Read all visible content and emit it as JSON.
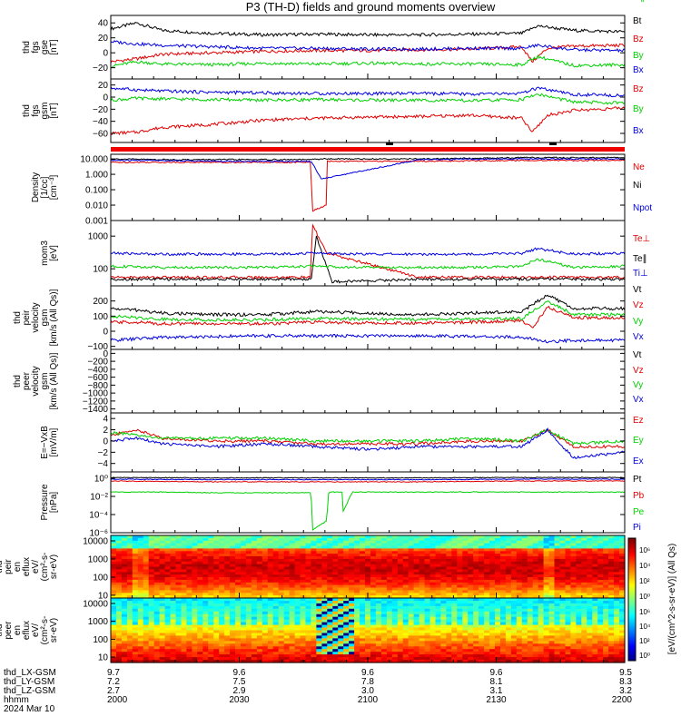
{
  "title": "P3 (TH-D) fields and ground moments overview",
  "colors": {
    "black": "#000000",
    "red": "#e00000",
    "green": "#00d000",
    "blue": "#0000e0"
  },
  "chart_data": [
    {
      "type": "line",
      "panel": "fgs_gse",
      "ylabel": [
        "thd",
        "fgs",
        "gse",
        "[nT]"
      ],
      "ylim": [
        -35,
        50
      ],
      "yticks": [
        "40",
        "20",
        "0",
        "−20"
      ],
      "ytick_values": [
        40,
        20,
        0,
        -20
      ],
      "series": [
        {
          "name": "Bt",
          "color": "#000000",
          "x": [
            0,
            0.05,
            0.1,
            0.2,
            0.3,
            0.4,
            0.5,
            0.6,
            0.7,
            0.8,
            0.83,
            0.9,
            1.0
          ],
          "y": [
            32,
            40,
            30,
            26,
            24,
            25,
            24,
            24,
            25,
            26,
            36,
            30,
            28
          ]
        },
        {
          "name": "Bz",
          "color": "#e00000",
          "x": [
            0,
            0.05,
            0.1,
            0.2,
            0.3,
            0.4,
            0.5,
            0.6,
            0.7,
            0.8,
            0.82,
            0.85,
            0.9,
            1.0
          ],
          "y": [
            -12,
            -8,
            -2,
            0,
            2,
            3,
            3,
            4,
            5,
            8,
            -12,
            6,
            9,
            10
          ]
        },
        {
          "name": "By",
          "color": "#00d000",
          "x": [
            0,
            0.05,
            0.1,
            0.2,
            0.3,
            0.4,
            0.5,
            0.6,
            0.7,
            0.8,
            0.83,
            0.9,
            1.0
          ],
          "y": [
            -18,
            -12,
            -15,
            -16,
            -14,
            -15,
            -14,
            -15,
            -15,
            -16,
            -5,
            -17,
            -16
          ]
        },
        {
          "name": "Bx",
          "color": "#0000e0",
          "x": [
            0,
            0.05,
            0.1,
            0.2,
            0.3,
            0.4,
            0.5,
            0.6,
            0.7,
            0.8,
            0.83,
            0.9,
            1.0
          ],
          "y": [
            15,
            12,
            10,
            8,
            6,
            6,
            5,
            5,
            6,
            6,
            10,
            4,
            3
          ]
        }
      ]
    },
    {
      "type": "line",
      "panel": "fgs_gsm",
      "ylabel": [
        "thd",
        "fgs",
        "gsm",
        "[nT]"
      ],
      "ylim": [
        -75,
        30
      ],
      "yticks": [
        "20",
        "0",
        "−20",
        "−40",
        "−60"
      ],
      "ytick_values": [
        20,
        0,
        -20,
        -40,
        -60
      ],
      "series": [
        {
          "name": "Bz",
          "color": "#e00000",
          "x": [
            0,
            0.05,
            0.1,
            0.2,
            0.3,
            0.4,
            0.5,
            0.6,
            0.7,
            0.8,
            0.82,
            0.85,
            0.9,
            1.0
          ],
          "y": [
            -60,
            -58,
            -50,
            -45,
            -38,
            -35,
            -33,
            -32,
            -30,
            -35,
            -58,
            -30,
            -22,
            -18
          ]
        },
        {
          "name": "By",
          "color": "#00d000",
          "x": [
            0,
            0.05,
            0.1,
            0.2,
            0.3,
            0.4,
            0.5,
            0.6,
            0.7,
            0.8,
            0.83,
            0.9,
            1.0
          ],
          "y": [
            -5,
            -2,
            -3,
            -4,
            -5,
            -4,
            -5,
            -5,
            -6,
            -4,
            5,
            -8,
            -10
          ]
        },
        {
          "name": "Bx",
          "color": "#0000e0",
          "x": [
            0,
            0.05,
            0.1,
            0.2,
            0.3,
            0.4,
            0.5,
            0.6,
            0.7,
            0.8,
            0.83,
            0.9,
            1.0
          ],
          "y": [
            15,
            12,
            10,
            8,
            7,
            6,
            6,
            6,
            5,
            6,
            15,
            4,
            3
          ]
        }
      ]
    },
    {
      "type": "line",
      "panel": "density",
      "ylabel": [
        "Density",
        "[1/cc]",
        "[cm⁻³]"
      ],
      "scale": "log",
      "ylim": [
        0.001,
        20
      ],
      "yticks": [
        "10.000",
        "1.000",
        "0.100",
        "0.010",
        "0.001"
      ],
      "ytick_values": [
        10,
        1,
        0.1,
        0.01,
        0.001
      ],
      "series": [
        {
          "name": "Ne",
          "color": "#e00000",
          "x": [
            0,
            0.1,
            0.2,
            0.3,
            0.39,
            0.391,
            0.42,
            0.421,
            0.6,
            0.8,
            1.0
          ],
          "y": [
            6,
            6,
            6,
            6,
            6,
            0.004,
            0.01,
            7,
            7,
            8,
            8
          ]
        },
        {
          "name": "Ni",
          "color": "#000000",
          "x": [
            0,
            0.1,
            0.2,
            0.3,
            0.39,
            0.41,
            0.6,
            0.8,
            1.0
          ],
          "y": [
            10,
            9,
            9,
            9,
            9,
            10,
            10,
            12,
            12
          ]
        },
        {
          "name": "Npot",
          "color": "#0000e0",
          "x": [
            0,
            0.1,
            0.2,
            0.3,
            0.39,
            0.41,
            0.6,
            0.8,
            1.0
          ],
          "y": [
            8,
            8,
            7,
            7,
            7,
            0.5,
            9,
            10,
            10
          ]
        }
      ]
    },
    {
      "type": "line",
      "panel": "temperature",
      "ylabel": [
        "mom3",
        "[eV]"
      ],
      "scale": "log",
      "ylim": [
        30,
        3000
      ],
      "yticks": [
        "1000",
        "100"
      ],
      "ytick_values": [
        1000,
        100
      ],
      "series": [
        {
          "name": "Te⊥",
          "color": "#e00000",
          "x": [
            0,
            0.1,
            0.2,
            0.3,
            0.39,
            0.391,
            0.42,
            0.6,
            0.8,
            1.0
          ],
          "y": [
            55,
            55,
            55,
            55,
            55,
            2500,
            300,
            55,
            55,
            55
          ]
        },
        {
          "name": "Te∥",
          "color": "#000000",
          "x": [
            0,
            0.1,
            0.2,
            0.3,
            0.39,
            0.4,
            0.43,
            0.6,
            0.8,
            1.0
          ],
          "y": [
            48,
            48,
            48,
            48,
            48,
            1000,
            40,
            48,
            48,
            48
          ]
        },
        {
          "name": "Ti⊥",
          "color": "#0000e0",
          "x": [
            0,
            0.1,
            0.2,
            0.3,
            0.4,
            0.5,
            0.6,
            0.7,
            0.8,
            0.83,
            0.9,
            1.0
          ],
          "y": [
            300,
            280,
            280,
            280,
            300,
            280,
            280,
            280,
            300,
            420,
            280,
            300
          ]
        },
        {
          "name": "Ti∥",
          "color": "#00d000",
          "x": [
            0,
            0.1,
            0.2,
            0.3,
            0.4,
            0.5,
            0.6,
            0.7,
            0.8,
            0.83,
            0.9,
            1.0
          ],
          "y": [
            120,
            110,
            110,
            110,
            120,
            110,
            110,
            110,
            120,
            200,
            110,
            120
          ]
        }
      ]
    },
    {
      "type": "line",
      "panel": "peir_velocity",
      "ylabel": [
        "thd",
        "peir",
        "velocity",
        "gsm",
        "[km/s (All Qs)]"
      ],
      "ylim": [
        -120,
        300
      ],
      "yticks": [
        "200",
        "100",
        "0",
        "−100"
      ],
      "ytick_values": [
        200,
        100,
        0,
        -100
      ],
      "series": [
        {
          "name": "Vt",
          "color": "#000000",
          "x": [
            0,
            0.05,
            0.1,
            0.2,
            0.3,
            0.4,
            0.5,
            0.6,
            0.7,
            0.8,
            0.85,
            0.9,
            1.0
          ],
          "y": [
            150,
            140,
            120,
            110,
            110,
            130,
            120,
            110,
            120,
            130,
            240,
            150,
            150
          ]
        },
        {
          "name": "Vz",
          "color": "#e00000",
          "x": [
            0,
            0.05,
            0.1,
            0.2,
            0.3,
            0.4,
            0.5,
            0.6,
            0.7,
            0.8,
            0.82,
            0.85,
            0.9,
            1.0
          ],
          "y": [
            60,
            60,
            50,
            50,
            50,
            60,
            55,
            55,
            60,
            70,
            20,
            160,
            90,
            90
          ]
        },
        {
          "name": "Vy",
          "color": "#00d000",
          "x": [
            0,
            0.05,
            0.1,
            0.2,
            0.3,
            0.4,
            0.5,
            0.6,
            0.7,
            0.8,
            0.85,
            0.9,
            1.0
          ],
          "y": [
            100,
            90,
            80,
            75,
            75,
            85,
            80,
            80,
            80,
            85,
            200,
            110,
            110
          ]
        },
        {
          "name": "Vx",
          "color": "#0000e0",
          "x": [
            0,
            0.05,
            0.1,
            0.2,
            0.3,
            0.4,
            0.5,
            0.6,
            0.7,
            0.8,
            0.85,
            0.9,
            1.0
          ],
          "y": [
            -60,
            -50,
            -40,
            -35,
            -30,
            -30,
            -30,
            -30,
            -35,
            -40,
            -70,
            -60,
            -60
          ]
        }
      ]
    },
    {
      "type": "line",
      "panel": "peer_velocity",
      "ylabel": [
        "thd",
        "peer",
        "velocity",
        "gsm",
        "[km/s (All Qs)]"
      ],
      "ylim": [
        -1500,
        100
      ],
      "yticks": [
        "0",
        "−200",
        "−400",
        "−600",
        "−800",
        "−1000",
        "−1200",
        "−1400"
      ],
      "ytick_values": [
        0,
        -200,
        -400,
        -600,
        -800,
        -1000,
        -1200,
        -1400
      ],
      "series": [
        {
          "name": "Vt",
          "color": "#000000",
          "x": [],
          "y": []
        },
        {
          "name": "Vz",
          "color": "#e00000",
          "x": [],
          "y": []
        },
        {
          "name": "Vy",
          "color": "#00d000",
          "x": [],
          "y": []
        },
        {
          "name": "Vx",
          "color": "#0000e0",
          "x": [],
          "y": []
        }
      ]
    },
    {
      "type": "line",
      "panel": "e_field",
      "ylabel": [
        "E=−VxB",
        "[mV/m]"
      ],
      "ylim": [
        -5.5,
        5
      ],
      "yticks": [
        "4",
        "2",
        "0",
        "−2",
        "−4"
      ],
      "ytick_values": [
        4,
        2,
        0,
        -2,
        -4
      ],
      "series": [
        {
          "name": "Ez",
          "color": "#e00000",
          "x": [
            0,
            0.05,
            0.1,
            0.2,
            0.3,
            0.4,
            0.5,
            0.6,
            0.7,
            0.8,
            0.85,
            0.9,
            1.0
          ],
          "y": [
            1,
            2,
            0.5,
            0,
            0,
            -0.5,
            -0.5,
            -0.5,
            0,
            0,
            2,
            -1,
            -1
          ]
        },
        {
          "name": "Ey",
          "color": "#00d000",
          "x": [
            0,
            0.05,
            0.1,
            0.2,
            0.3,
            0.4,
            0.5,
            0.6,
            0.7,
            0.8,
            0.85,
            0.9,
            1.0
          ],
          "y": [
            1.5,
            1,
            0.5,
            0.5,
            0.5,
            0,
            0,
            0,
            0.5,
            0,
            2,
            -0.5,
            0
          ]
        },
        {
          "name": "Ex",
          "color": "#0000e0",
          "x": [
            0,
            0.05,
            0.1,
            0.2,
            0.3,
            0.4,
            0.5,
            0.6,
            0.7,
            0.8,
            0.85,
            0.9,
            1.0
          ],
          "y": [
            0,
            0.5,
            -0.5,
            -1,
            -0.5,
            -1,
            -1.5,
            -1,
            -1,
            -1,
            2,
            -3,
            -2
          ]
        }
      ]
    },
    {
      "type": "line",
      "panel": "pressure",
      "ylabel": [
        "Pressure",
        "[nPa]"
      ],
      "scale": "log",
      "ylim": [
        1e-06,
        5
      ],
      "yticks": [
        "10⁰",
        "10⁻²",
        "10⁻⁴",
        "10⁻⁶"
      ],
      "ytick_values": [
        1,
        0.01,
        0.0001,
        1e-06
      ],
      "series": [
        {
          "name": "Pt",
          "color": "#000000",
          "x": [
            0,
            0.2,
            0.4,
            0.6,
            0.8,
            1.0
          ],
          "y": [
            1.2,
            1.1,
            1.1,
            1.1,
            1.2,
            1.2
          ]
        },
        {
          "name": "Pb",
          "color": "#e00000",
          "x": [
            0,
            0.2,
            0.4,
            0.6,
            0.8,
            1.0
          ],
          "y": [
            0.5,
            0.4,
            0.4,
            0.4,
            0.5,
            0.5
          ]
        },
        {
          "name": "Pe",
          "color": "#00d000",
          "x": [
            0,
            0.1,
            0.2,
            0.3,
            0.39,
            0.392,
            0.42,
            0.424,
            0.45,
            0.452,
            0.47,
            0.6,
            0.8,
            1.0
          ],
          "y": [
            0.03,
            0.03,
            0.025,
            0.025,
            0.025,
            2e-06,
            2e-05,
            0.03,
            0.03,
            0.0002,
            0.03,
            0.03,
            0.03,
            0.03
          ]
        },
        {
          "name": "Pi",
          "color": "#0000e0",
          "x": [
            0,
            0.2,
            0.4,
            0.6,
            0.8,
            1.0
          ],
          "y": [
            0.8,
            0.7,
            0.7,
            0.7,
            0.8,
            0.8
          ]
        }
      ]
    },
    {
      "type": "heatmap",
      "panel": "peir_spectrogram",
      "ylabel": [
        "thd",
        "peir",
        "en",
        "eflux",
        "eV/",
        "(cm²-s-",
        "sr-eV)"
      ],
      "scale": "log",
      "ylim": [
        7,
        20000
      ],
      "yticks": [
        "10000",
        "1000",
        "100",
        "10"
      ],
      "ytick_values": [
        10000,
        1000,
        100,
        10
      ]
    },
    {
      "type": "heatmap",
      "panel": "peer_spectrogram",
      "ylabel": [
        "thd",
        "peer",
        "en",
        "eflux",
        "eV/",
        "(cm²-s-",
        "sr-eV)"
      ],
      "scale": "log",
      "ylim": [
        5,
        20000
      ],
      "yticks": [
        "10000",
        "1000",
        "100",
        "10"
      ],
      "ytick_values": [
        10000,
        1000,
        100,
        10
      ]
    }
  ],
  "colorbar": {
    "label": "[eV/(cm^2-s-sr-eV)] (All Qs)",
    "ticks": [
      "10⁶",
      "10⁴",
      "10²",
      "10⁰"
    ],
    "ticks_lower": [
      "10⁶",
      "10⁴",
      "10²",
      "10⁰"
    ],
    "ticks_values": [
      6,
      4,
      2,
      0
    ]
  },
  "x_axis": {
    "row_labels": [
      "thd_LX-GSM",
      "thd_LY-GSM",
      "thd_LZ-GSM",
      "hhmm",
      "2024 Mar 10"
    ],
    "columns": [
      {
        "lx": "9.7",
        "ly": "7.2",
        "lz": "2.7",
        "hhmm": "2000"
      },
      {
        "lx": "9.6",
        "ly": "7.5",
        "lz": "2.9",
        "hhmm": "2030"
      },
      {
        "lx": "9.6",
        "ly": "7.8",
        "lz": "3.0",
        "hhmm": "2100"
      },
      {
        "lx": "9.6",
        "ly": "8.1",
        "lz": "3.1",
        "hhmm": "2130"
      },
      {
        "lx": "9.5",
        "ly": "8.3",
        "lz": "3.2",
        "hhmm": "2200"
      }
    ]
  }
}
